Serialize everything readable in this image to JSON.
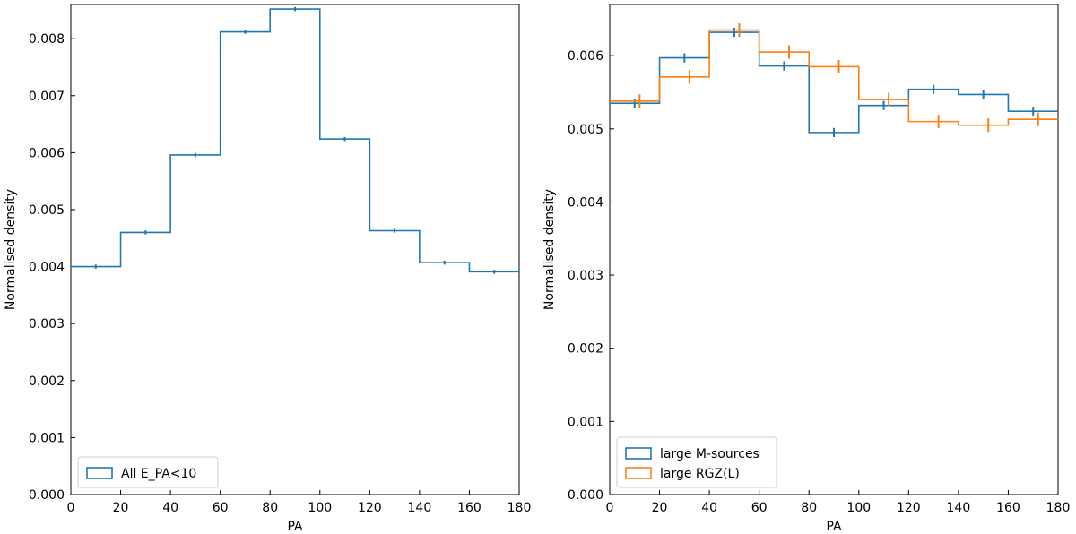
{
  "chart_data": [
    {
      "type": "step-histogram",
      "xlabel": "PA",
      "ylabel": "Normalised density",
      "xlim": [
        0,
        180
      ],
      "ylim": [
        0,
        0.0086
      ],
      "xticks": [
        0,
        20,
        40,
        60,
        80,
        100,
        120,
        140,
        160,
        180
      ],
      "yticks": [
        0.0,
        0.001,
        0.002,
        0.003,
        0.004,
        0.005,
        0.006,
        0.007,
        0.008
      ],
      "ytick_labels": [
        "0.000",
        "0.001",
        "0.002",
        "0.003",
        "0.004",
        "0.005",
        "0.006",
        "0.007",
        "0.008"
      ],
      "bin_edges": [
        0,
        20,
        40,
        60,
        80,
        100,
        120,
        140,
        160,
        180
      ],
      "legend_position": "lower-left",
      "grid": false,
      "series": [
        {
          "name": "All E_PA<10",
          "color": "#1f77b4",
          "values": [
            0.004,
            0.0046,
            0.00596,
            0.00812,
            0.00852,
            0.00624,
            0.00463,
            0.00407,
            0.00391
          ],
          "errors": [
            2e-05,
            2e-05,
            2e-05,
            2e-05,
            2e-05,
            2e-05,
            2e-05,
            2e-05,
            2e-05
          ],
          "marker_x": [
            10,
            30,
            50,
            70,
            90,
            110,
            130,
            150,
            170
          ]
        }
      ]
    },
    {
      "type": "step-histogram",
      "xlabel": "PA",
      "ylabel": "Normalised density",
      "xlim": [
        0,
        180
      ],
      "ylim": [
        0,
        0.0067
      ],
      "xticks": [
        0,
        20,
        40,
        60,
        80,
        100,
        120,
        140,
        160,
        180
      ],
      "yticks": [
        0.0,
        0.001,
        0.002,
        0.003,
        0.004,
        0.005,
        0.006
      ],
      "ytick_labels": [
        "0.000",
        "0.001",
        "0.002",
        "0.003",
        "0.004",
        "0.005",
        "0.006"
      ],
      "bin_edges": [
        0,
        20,
        40,
        60,
        80,
        100,
        120,
        140,
        160,
        180
      ],
      "legend_position": "lower-left",
      "grid": false,
      "series": [
        {
          "name": "large M-sources",
          "color": "#1f77b4",
          "values": [
            0.00535,
            0.00597,
            0.00632,
            0.00586,
            0.00495,
            0.00532,
            0.00554,
            0.00547,
            0.00524
          ],
          "errors": [
            5e-05,
            5e-05,
            5e-05,
            5e-05,
            5e-05,
            5e-05,
            5e-05,
            5e-05,
            5e-05
          ],
          "marker_x": [
            10,
            30,
            50,
            70,
            90,
            110,
            130,
            150,
            170
          ]
        },
        {
          "name": "large RGZ(L)",
          "color": "#ff7f0e",
          "values": [
            0.00538,
            0.00571,
            0.00635,
            0.00605,
            0.00585,
            0.0054,
            0.0051,
            0.00505,
            0.00513
          ],
          "errors": [
            8e-05,
            8e-05,
            8e-05,
            8e-05,
            8e-05,
            8e-05,
            8e-05,
            8e-05,
            8e-05
          ],
          "marker_x": [
            12,
            32,
            52,
            72,
            92,
            112,
            132,
            152,
            172
          ]
        }
      ]
    }
  ]
}
